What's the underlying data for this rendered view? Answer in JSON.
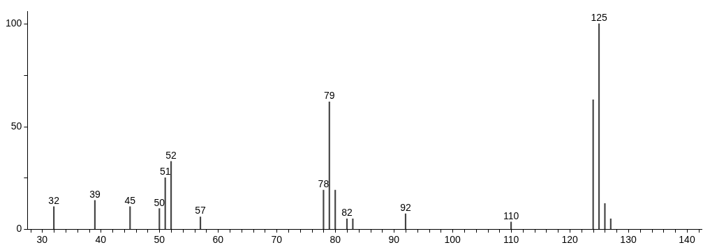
{
  "chart_data": {
    "type": "bar",
    "x": [
      32,
      39,
      45,
      50,
      51,
      52,
      57,
      78,
      79,
      80,
      82,
      83,
      92,
      110,
      124,
      125,
      126,
      127
    ],
    "values": [
      11,
      14,
      11,
      10,
      25,
      33,
      6,
      19,
      62,
      19,
      5,
      5,
      7.5,
      3.5,
      63,
      100,
      12.5,
      5
    ],
    "color": "#444444",
    "xlim": [
      27.5,
      142.5
    ],
    "xticks": [
      {
        "value": 28,
        "label": null
      },
      30,
      {
        "value": 32,
        "label": null
      },
      {
        "value": 34,
        "label": null
      },
      {
        "value": 36,
        "label": null
      },
      {
        "value": 38,
        "label": null
      },
      40,
      {
        "value": 42,
        "label": null
      },
      {
        "value": 44,
        "label": null
      },
      {
        "value": 46,
        "label": null
      },
      {
        "value": 48,
        "label": null
      },
      50,
      {
        "value": 52,
        "label": null
      },
      {
        "value": 54,
        "label": null
      },
      {
        "value": 56,
        "label": null
      },
      {
        "value": 58,
        "label": null
      },
      60,
      {
        "value": 62,
        "label": null
      },
      {
        "value": 64,
        "label": null
      },
      {
        "value": 66,
        "label": null
      },
      {
        "value": 68,
        "label": null
      },
      70,
      {
        "value": 72,
        "label": null
      },
      {
        "value": 74,
        "label": null
      },
      {
        "value": 76,
        "label": null
      },
      {
        "value": 78,
        "label": null
      },
      80,
      {
        "value": 82,
        "label": null
      },
      {
        "value": 84,
        "label": null
      },
      {
        "value": 86,
        "label": null
      },
      {
        "value": 88,
        "label": null
      },
      90,
      {
        "value": 92,
        "label": null
      },
      {
        "value": 94,
        "label": null
      },
      {
        "value": 96,
        "label": null
      },
      {
        "value": 98,
        "label": null
      },
      100,
      {
        "value": 102,
        "label": null
      },
      {
        "value": 104,
        "label": null
      },
      {
        "value": 106,
        "label": null
      },
      {
        "value": 108,
        "label": null
      },
      110,
      {
        "value": 112,
        "label": null
      },
      {
        "value": 114,
        "label": null
      },
      {
        "value": 116,
        "label": null
      },
      {
        "value": 118,
        "label": null
      },
      120,
      {
        "value": 122,
        "label": null
      },
      {
        "value": 124,
        "label": null
      },
      {
        "value": 126,
        "label": null
      },
      {
        "value": 128,
        "label": null
      },
      130,
      {
        "value": 132,
        "label": null
      },
      {
        "value": 134,
        "label": null
      },
      {
        "value": 136,
        "label": null
      },
      {
        "value": 138,
        "label": null
      },
      140,
      {
        "value": 142,
        "label": null
      }
    ],
    "ylim": [
      0,
      106
    ],
    "yticks": [
      0,
      {
        "value": 25,
        "label": null
      },
      50,
      {
        "value": 75,
        "label": null
      },
      100
    ],
    "annotations": [
      {
        "text": "32",
        "x": 32,
        "y": 11
      },
      {
        "text": "39",
        "x": 39,
        "y": 14
      },
      {
        "text": "45",
        "x": 45,
        "y": 11
      },
      {
        "text": "50",
        "x": 50,
        "y": 10
      },
      {
        "text": "51",
        "x": 51,
        "y": 25
      },
      {
        "text": "52",
        "x": 52,
        "y": 33
      },
      {
        "text": "57",
        "x": 57,
        "y": 6
      },
      {
        "text": "78",
        "x": 78,
        "y": 19
      },
      {
        "text": "79",
        "x": 79,
        "y": 62
      },
      {
        "text": "82",
        "x": 82,
        "y": 5
      },
      {
        "text": "92",
        "x": 92,
        "y": 7.5
      },
      {
        "text": "110",
        "x": 110,
        "y": 3.5
      },
      {
        "text": "125",
        "x": 125,
        "y": 100
      }
    ],
    "grid": false,
    "legend": false
  }
}
